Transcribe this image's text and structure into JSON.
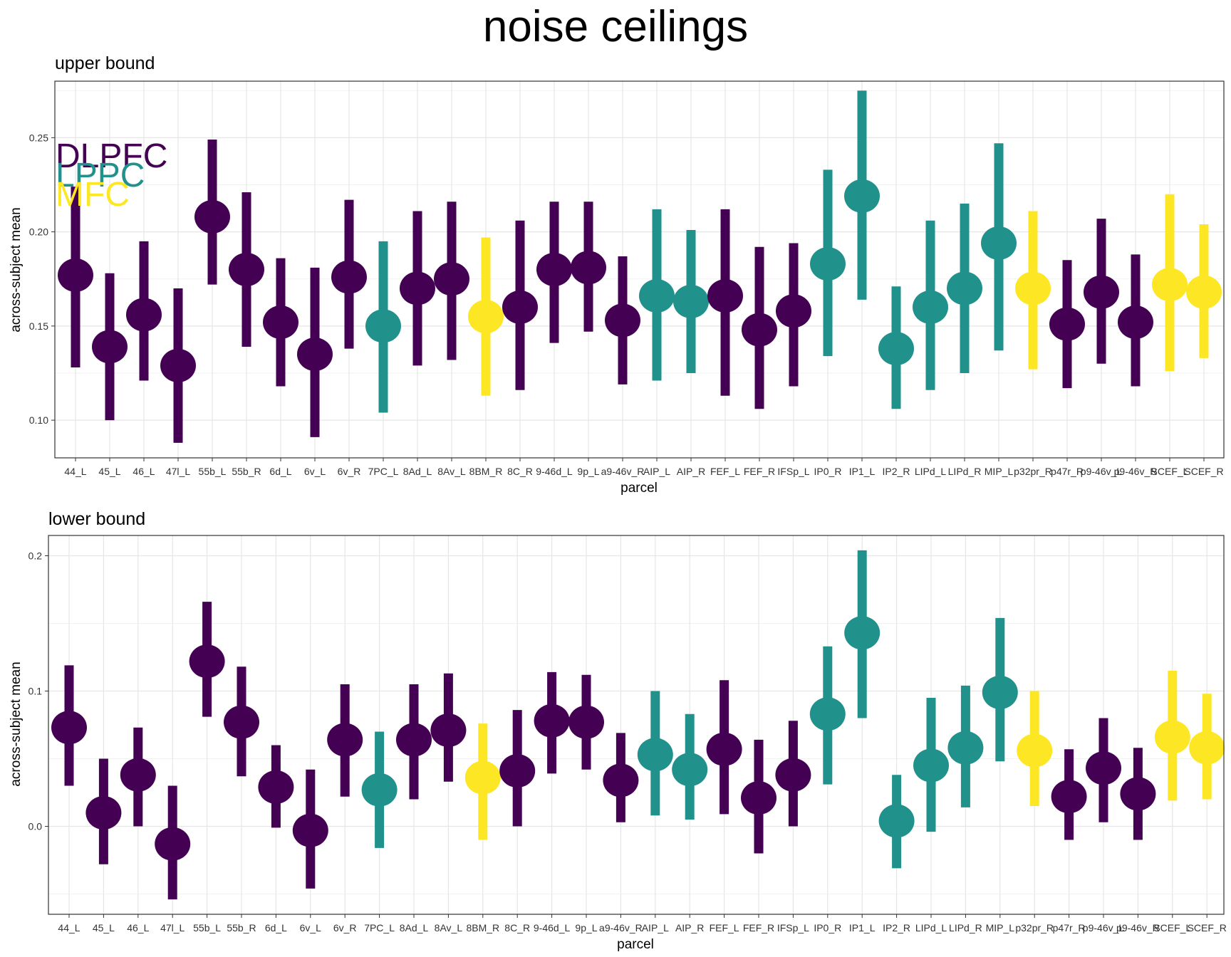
{
  "title": "noise ceilings",
  "colors": {
    "DLPFC": "#440154",
    "LPPC": "#21918c",
    "MFC": "#fde725"
  },
  "legend": [
    "DLPFC",
    "LPPC",
    "MFC"
  ],
  "chart_data": [
    {
      "type": "scatter",
      "title": "upper bound",
      "xlabel": "parcel",
      "ylabel": "across-subject mean",
      "ylim": [
        0.08,
        0.28
      ],
      "yticks": [
        "0.10",
        "0.15",
        "0.20",
        "0.25"
      ],
      "grid": true,
      "categories": [
        "44_L",
        "45_L",
        "46_L",
        "47l_L",
        "55b_L",
        "55b_R",
        "6d_L",
        "6v_L",
        "6v_R",
        "7PC_L",
        "8Ad_L",
        "8Av_L",
        "8BM_R",
        "8C_R",
        "9-46d_L",
        "9p_L",
        "a9-46v_R",
        "AIP_L",
        "AIP_R",
        "FEF_L",
        "FEF_R",
        "IFSp_L",
        "IP0_R",
        "IP1_L",
        "IP2_R",
        "LIPd_L",
        "LIPd_R",
        "MIP_L",
        "p32pr_R",
        "p47r_R",
        "p9-46v_L",
        "p9-46v_R",
        "SCEF_L",
        "SCEF_R"
      ],
      "groups": [
        "DLPFC",
        "DLPFC",
        "DLPFC",
        "DLPFC",
        "DLPFC",
        "DLPFC",
        "DLPFC",
        "DLPFC",
        "DLPFC",
        "LPPC",
        "DLPFC",
        "DLPFC",
        "MFC",
        "DLPFC",
        "DLPFC",
        "DLPFC",
        "DLPFC",
        "LPPC",
        "LPPC",
        "DLPFC",
        "DLPFC",
        "DLPFC",
        "LPPC",
        "LPPC",
        "LPPC",
        "LPPC",
        "LPPC",
        "LPPC",
        "MFC",
        "DLPFC",
        "DLPFC",
        "DLPFC",
        "MFC",
        "MFC"
      ],
      "values": [
        0.177,
        0.139,
        0.156,
        0.129,
        0.208,
        0.18,
        0.152,
        0.135,
        0.176,
        0.15,
        0.17,
        0.175,
        0.155,
        0.16,
        0.18,
        0.181,
        0.153,
        0.166,
        0.163,
        0.166,
        0.148,
        0.158,
        0.183,
        0.219,
        0.138,
        0.16,
        0.17,
        0.194,
        0.17,
        0.151,
        0.168,
        0.152,
        0.172,
        0.168
      ],
      "lower": [
        0.128,
        0.1,
        0.121,
        0.088,
        0.172,
        0.139,
        0.118,
        0.091,
        0.138,
        0.104,
        0.129,
        0.132,
        0.113,
        0.116,
        0.141,
        0.147,
        0.119,
        0.121,
        0.125,
        0.113,
        0.106,
        0.118,
        0.134,
        0.164,
        0.106,
        0.116,
        0.125,
        0.137,
        0.127,
        0.117,
        0.13,
        0.118,
        0.126,
        0.133
      ],
      "upper": [
        0.224,
        0.178,
        0.195,
        0.17,
        0.249,
        0.221,
        0.186,
        0.181,
        0.217,
        0.195,
        0.211,
        0.216,
        0.197,
        0.206,
        0.216,
        0.216,
        0.187,
        0.212,
        0.201,
        0.212,
        0.192,
        0.194,
        0.233,
        0.275,
        0.171,
        0.206,
        0.215,
        0.247,
        0.211,
        0.185,
        0.207,
        0.188,
        0.22,
        0.204
      ]
    },
    {
      "type": "scatter",
      "title": "lower bound",
      "xlabel": "parcel",
      "ylabel": "across-subject mean",
      "ylim": [
        -0.065,
        0.215
      ],
      "yticks": [
        "0.0",
        "0.1",
        "0.2"
      ],
      "grid": true,
      "categories": [
        "44_L",
        "45_L",
        "46_L",
        "47l_L",
        "55b_L",
        "55b_R",
        "6d_L",
        "6v_L",
        "6v_R",
        "7PC_L",
        "8Ad_L",
        "8Av_L",
        "8BM_R",
        "8C_R",
        "9-46d_L",
        "9p_L",
        "a9-46v_R",
        "AIP_L",
        "AIP_R",
        "FEF_L",
        "FEF_R",
        "IFSp_L",
        "IP0_R",
        "IP1_L",
        "IP2_R",
        "LIPd_L",
        "LIPd_R",
        "MIP_L",
        "p32pr_R",
        "p47r_R",
        "p9-46v_L",
        "p9-46v_R",
        "SCEF_L",
        "SCEF_R"
      ],
      "groups": [
        "DLPFC",
        "DLPFC",
        "DLPFC",
        "DLPFC",
        "DLPFC",
        "DLPFC",
        "DLPFC",
        "DLPFC",
        "DLPFC",
        "LPPC",
        "DLPFC",
        "DLPFC",
        "MFC",
        "DLPFC",
        "DLPFC",
        "DLPFC",
        "DLPFC",
        "LPPC",
        "LPPC",
        "DLPFC",
        "DLPFC",
        "DLPFC",
        "LPPC",
        "LPPC",
        "LPPC",
        "LPPC",
        "LPPC",
        "LPPC",
        "MFC",
        "DLPFC",
        "DLPFC",
        "DLPFC",
        "MFC",
        "MFC"
      ],
      "values": [
        0.073,
        0.01,
        0.038,
        -0.013,
        0.122,
        0.077,
        0.029,
        -0.003,
        0.064,
        0.027,
        0.064,
        0.071,
        0.036,
        0.041,
        0.078,
        0.077,
        0.034,
        0.053,
        0.042,
        0.057,
        0.021,
        0.038,
        0.083,
        0.143,
        0.004,
        0.045,
        0.058,
        0.099,
        0.056,
        0.022,
        0.043,
        0.024,
        0.066,
        0.058
      ],
      "lower": [
        0.03,
        -0.028,
        0.0,
        -0.054,
        0.081,
        0.037,
        -0.001,
        -0.046,
        0.022,
        -0.016,
        0.02,
        0.033,
        -0.01,
        0.0,
        0.039,
        0.042,
        0.003,
        0.008,
        0.005,
        0.009,
        -0.02,
        0.0,
        0.031,
        0.08,
        -0.031,
        -0.004,
        0.014,
        0.048,
        0.015,
        -0.01,
        0.003,
        -0.01,
        0.019,
        0.02
      ],
      "upper": [
        0.119,
        0.05,
        0.073,
        0.03,
        0.166,
        0.118,
        0.06,
        0.042,
        0.105,
        0.07,
        0.105,
        0.113,
        0.076,
        0.086,
        0.114,
        0.112,
        0.069,
        0.1,
        0.083,
        0.108,
        0.064,
        0.078,
        0.133,
        0.204,
        0.038,
        0.095,
        0.104,
        0.154,
        0.1,
        0.057,
        0.08,
        0.058,
        0.115,
        0.098
      ]
    }
  ]
}
